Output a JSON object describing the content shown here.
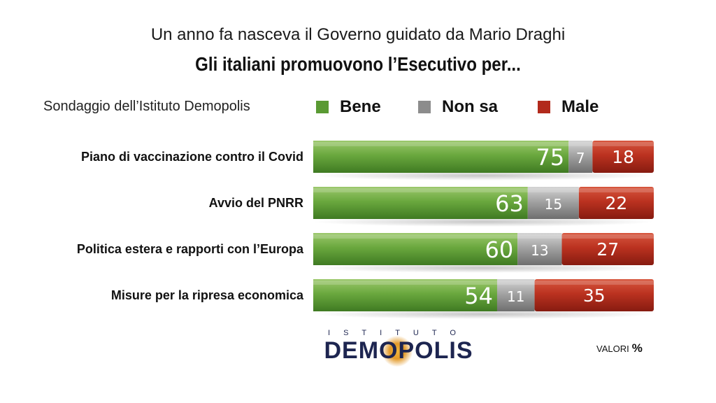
{
  "header": {
    "subtitle": "Un anno fa nasceva il Governo guidato da Mario Draghi",
    "title": "Gli italiani promuovono l’Esecutivo per..."
  },
  "source": "Sondaggio dell’Istituto Demopolis",
  "legend": [
    {
      "label": "Bene",
      "color": "#5a9a33"
    },
    {
      "label": "Non sa",
      "color": "#8c8c8c"
    },
    {
      "label": "Male",
      "color": "#b22a1c"
    }
  ],
  "chart_data": {
    "type": "bar",
    "orientation": "horizontal",
    "stacked": true,
    "categories": [
      "Piano di vaccinazione contro il Covid",
      "Avvio del PNRR",
      "Politica estera e rapporti con l’Europa",
      "Misure per la ripresa economica"
    ],
    "series": [
      {
        "name": "Bene",
        "color": "#5a9a33",
        "values": [
          75,
          63,
          60,
          54
        ]
      },
      {
        "name": "Non sa",
        "color": "#8c8c8c",
        "values": [
          7,
          15,
          13,
          11
        ]
      },
      {
        "name": "Male",
        "color": "#b22a1c",
        "values": [
          18,
          22,
          27,
          35
        ]
      }
    ],
    "xlim": [
      0,
      100
    ],
    "grid": false,
    "legend_position": "top"
  },
  "logo": {
    "top": "ISTITUTO",
    "main": "DEMOPOLIS"
  },
  "units": {
    "label": "VALORI",
    "symbol": "%"
  }
}
